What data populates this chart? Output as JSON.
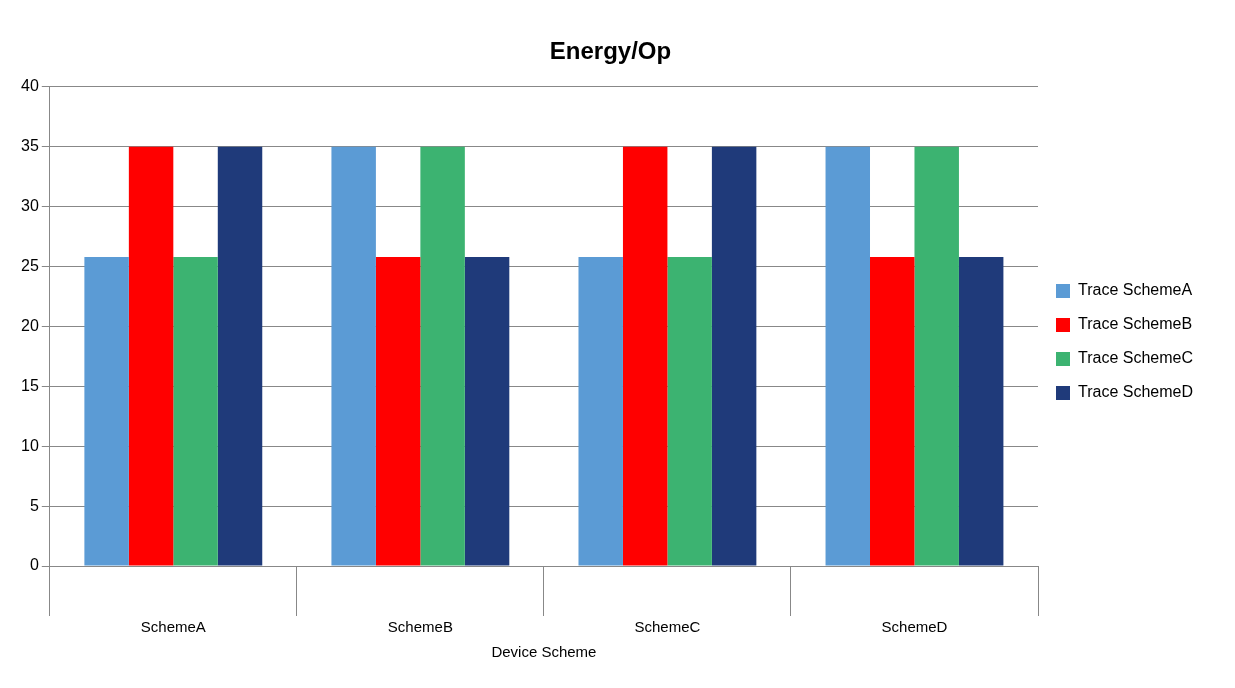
{
  "chart_data": {
    "type": "bar",
    "title": "Energy/Op",
    "xlabel": "Device Scheme",
    "categories": [
      "SchemeA",
      "SchemeB",
      "SchemeC",
      "SchemeD"
    ],
    "series": [
      {
        "name": "Trace SchemeA",
        "color": "#5b9bd5",
        "values": [
          25.8,
          35,
          25.8,
          35
        ]
      },
      {
        "name": "Trace SchemeB",
        "color": "#ff0000",
        "values": [
          35,
          25.8,
          35,
          25.8
        ]
      },
      {
        "name": "Trace SchemeC",
        "color": "#3cb371",
        "values": [
          25.8,
          35,
          25.8,
          35
        ]
      },
      {
        "name": "Trace SchemeD",
        "color": "#1f3a7a",
        "values": [
          35,
          25.8,
          35,
          25.8
        ]
      }
    ],
    "ylim": [
      0,
      40
    ],
    "yticks": [
      0,
      5,
      10,
      15,
      20,
      25,
      30,
      35,
      40
    ],
    "grid": "y",
    "legend": "right"
  }
}
